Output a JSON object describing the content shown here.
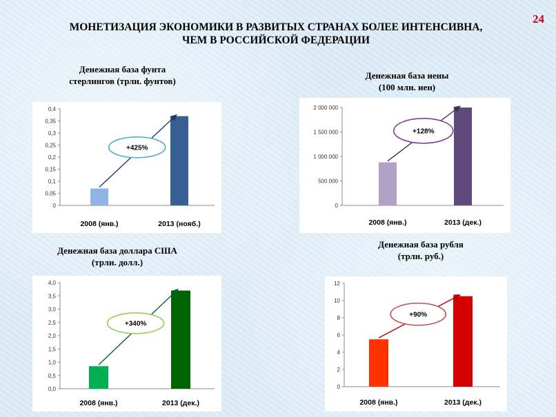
{
  "page_number": "24",
  "title_line1": "МОНЕТИЗАЦИЯ ЭКОНОМИКИ В РАЗВИТЫХ СТРАНАХ БОЛЕЕ ИНТЕНСИВНА,",
  "title_line2": "ЧЕМ В РОССИЙСКОЙ ФЕДЕРАЦИИ",
  "chart_data": [
    {
      "id": "gbp",
      "type": "bar",
      "title": "Денежная база фунта стерлингов (трлн. фунтов)",
      "title_lines": [
        "Денежная база фунта",
        "стерлингов (трлн. фунтов)"
      ],
      "categories": [
        "2008 (янв.)",
        "2013 (нояб.)"
      ],
      "values": [
        0.07,
        0.37
      ],
      "ylim": [
        0,
        0.4
      ],
      "ticks": [
        "0",
        "0,05",
        "0,1",
        "0,15",
        "0,2",
        "0,25",
        "0,3",
        "0,35",
        "0,4"
      ],
      "colors": [
        "#8db4e2",
        "#366092"
      ],
      "growth_label": "+425%",
      "ellipse_color": "#4bacc6",
      "arrow_color": "#1f3864"
    },
    {
      "id": "jpy",
      "type": "bar",
      "title": "Денежная база иены (100 млн. иен)",
      "title_lines": [
        "Денежная база иены",
        "(100 млн. иен)"
      ],
      "categories": [
        "2008 (янв.)",
        "2013 (дек.)"
      ],
      "values": [
        880000,
        2010000
      ],
      "ylim": [
        0,
        2000000
      ],
      "ticks": [
        "0",
        "500 000",
        "1 000 000",
        "1 500 000",
        "2 000 000"
      ],
      "colors": [
        "#b2a1c7",
        "#604a7b"
      ],
      "growth_label": "+128%",
      "ellipse_color": "#7f3f98",
      "arrow_color": "#3f3151"
    },
    {
      "id": "usd",
      "type": "bar",
      "title": "Денежная база доллара США (трлн. долл.)",
      "title_lines": [
        "Денежная база доллара США",
        "(трлн. долл.)"
      ],
      "categories": [
        "2008 (янв.)",
        "2013 (дек.)"
      ],
      "values": [
        0.85,
        3.7
      ],
      "ylim": [
        0,
        4.0
      ],
      "ticks": [
        "0,0",
        "0,5",
        "1,0",
        "1,5",
        "2,0",
        "2,5",
        "3,0",
        "3,5",
        "4,0"
      ],
      "colors": [
        "#00b050",
        "#006400"
      ],
      "growth_label": "+340%",
      "ellipse_color": "#92d050",
      "arrow_color": "#00602b"
    },
    {
      "id": "rub",
      "type": "bar",
      "title": "Денежная база рубля (трлн. руб.)",
      "title_lines": [
        "Денежная база рубля",
        "(трлн. руб.)"
      ],
      "categories": [
        "2008 (янв.)",
        "2013 (дек.)"
      ],
      "values": [
        5.5,
        10.5
      ],
      "ylim": [
        0,
        12
      ],
      "ticks": [
        "0",
        "2",
        "4",
        "6",
        "8",
        "10",
        "12"
      ],
      "colors": [
        "#ff3300",
        "#d40000"
      ],
      "growth_label": "+90%",
      "ellipse_color": "#c0504d",
      "arrow_color": "#c00000"
    }
  ]
}
